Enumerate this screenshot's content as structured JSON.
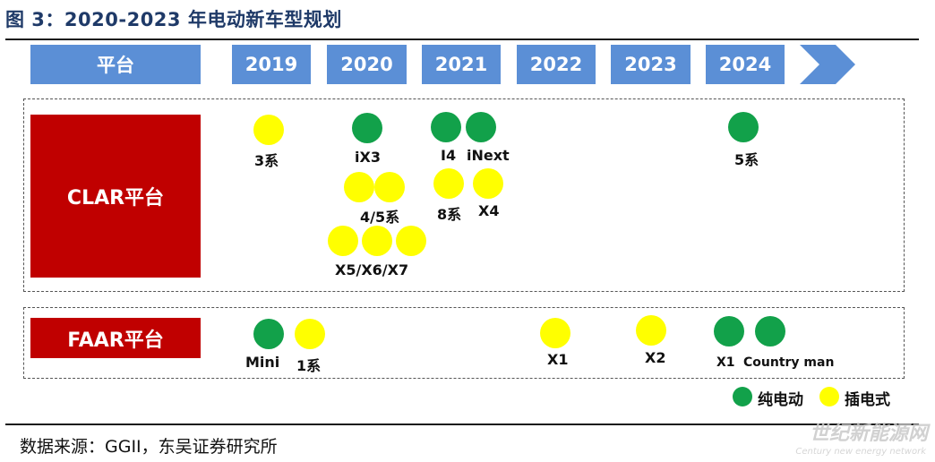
{
  "title": "图 3：2020-2023 年电动新车型规划",
  "header": {
    "platform_label": "平台",
    "years": [
      "2019",
      "2020",
      "2021",
      "2022",
      "2023",
      "2024"
    ]
  },
  "platforms": {
    "clar": {
      "label": "CLAR平台",
      "labels": {
        "s3": "3系",
        "ix3": "iX3",
        "i4": "I4",
        "inext": "iNext",
        "s5": "5系",
        "s45": "4/5系",
        "s8": "8系",
        "x4": "X4",
        "x567": "X5/X6/X7"
      }
    },
    "faar": {
      "label": "FAAR平台",
      "labels": {
        "mini": "Mini",
        "s1": "1系",
        "x1a": "X1",
        "x2": "X2",
        "x1b": "X1",
        "country": "Country man"
      }
    }
  },
  "legend": {
    "pure_electric": "纯电动",
    "plug_in": "插电式"
  },
  "colors": {
    "pure_electric": "#12a14a",
    "plug_in": "#ffff00",
    "platform": "#c00000",
    "header": "#5b8fd6"
  },
  "source": "数据来源：GGII，东吴证券研究所",
  "watermark": {
    "text": "世纪新能源网",
    "sub": "Century new energy network"
  }
}
